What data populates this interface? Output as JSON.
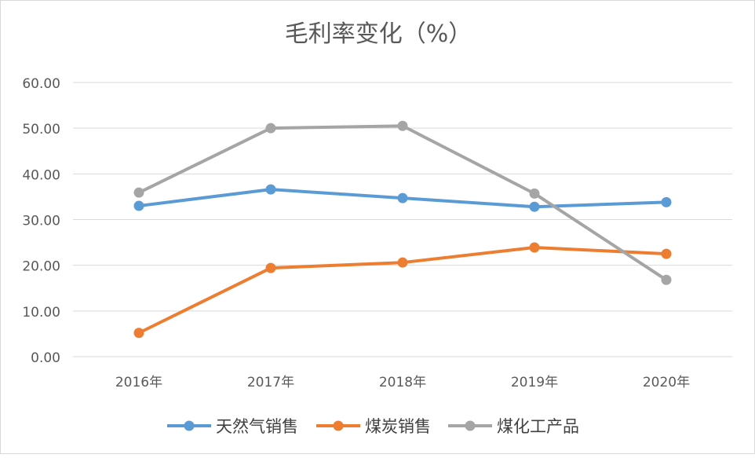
{
  "chart_data": {
    "type": "line",
    "title": "毛利率变化（%）",
    "categories": [
      "2016年",
      "2017年",
      "2018年",
      "2019年",
      "2020年"
    ],
    "y_ticks": [
      "0.00",
      "10.00",
      "20.00",
      "30.00",
      "40.00",
      "50.00",
      "60.00"
    ],
    "ylim": [
      0,
      60
    ],
    "grid": true,
    "legend_position": "bottom",
    "series": [
      {
        "name": "天然气销售",
        "color": "#5b9bd5",
        "values": [
          33.0,
          36.6,
          34.7,
          32.8,
          33.8
        ]
      },
      {
        "name": "煤炭销售",
        "color": "#ed7d31",
        "values": [
          5.2,
          19.4,
          20.6,
          23.9,
          22.5
        ]
      },
      {
        "name": "煤化工产品",
        "color": "#a5a5a5",
        "values": [
          35.9,
          50.0,
          50.5,
          35.7,
          16.8
        ]
      }
    ]
  }
}
